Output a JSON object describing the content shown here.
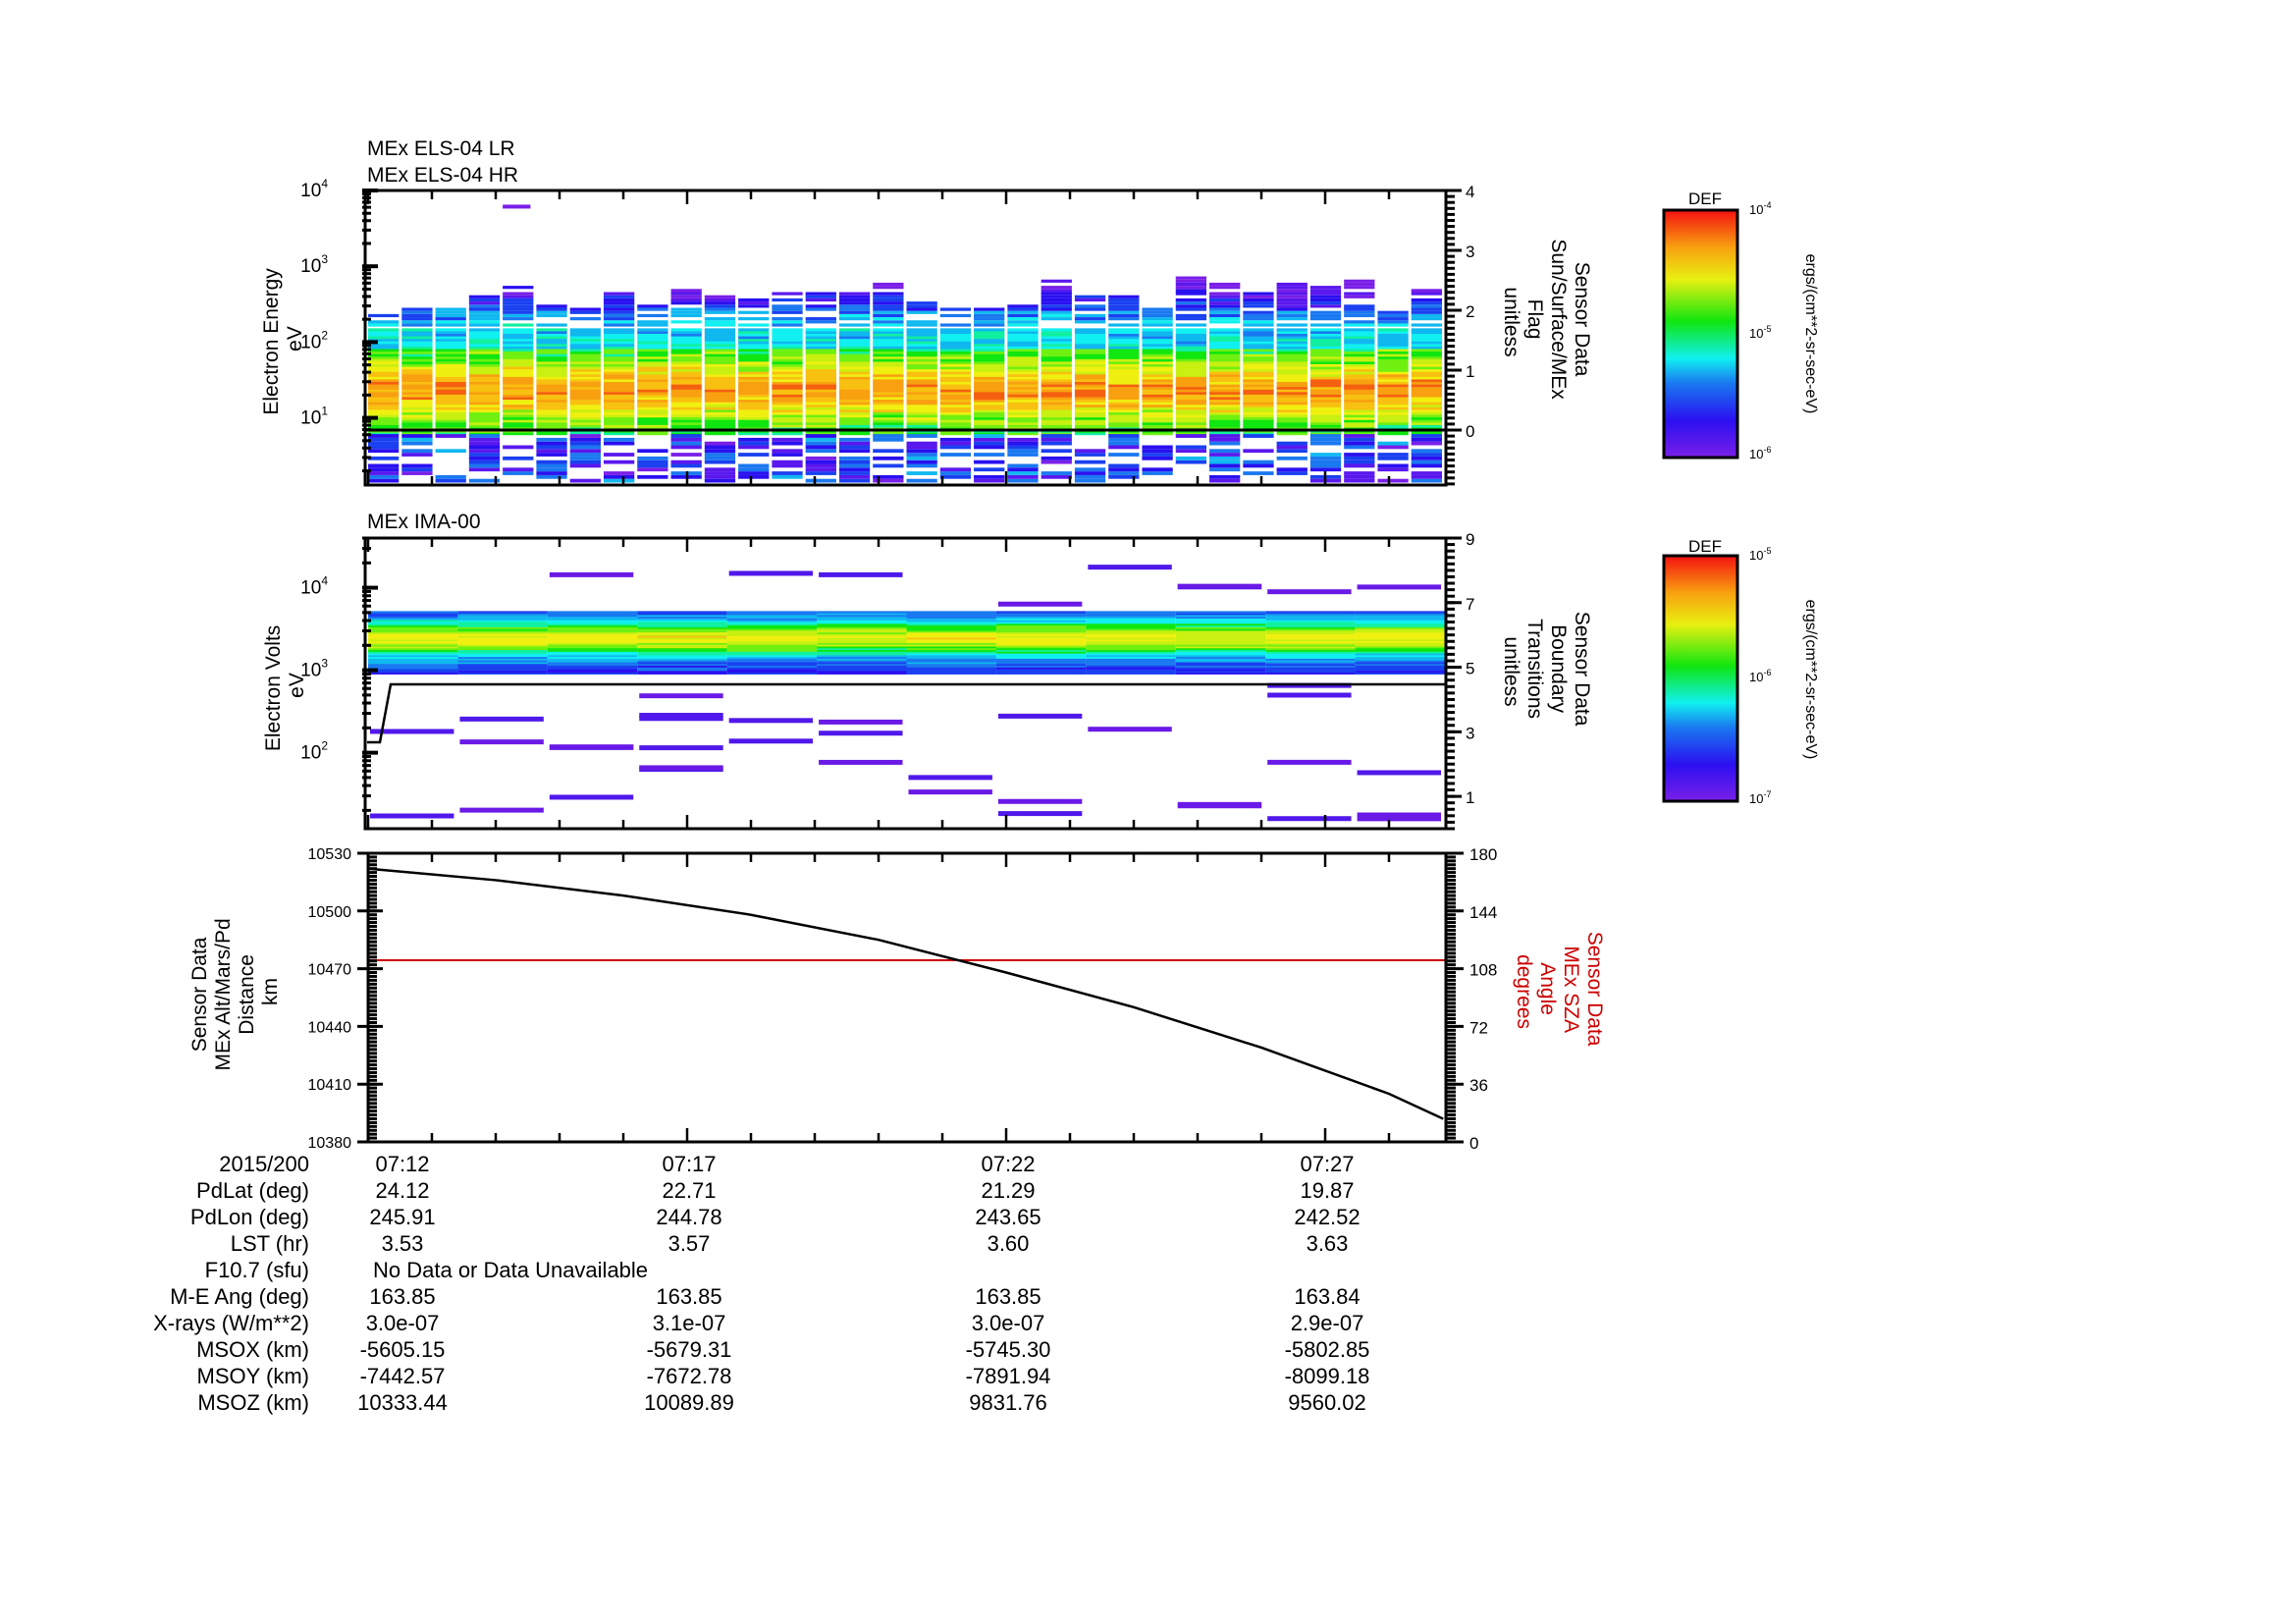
{
  "chart_data": [
    {
      "type": "heatmap",
      "panel": "electron-energy-spectrogram",
      "titles": [
        "MEx ELS-04 LR",
        "MEx ELS-04 HR"
      ],
      "ylabel": [
        "Electron Energy",
        "eV"
      ],
      "yscale": "log",
      "ylim": [
        1,
        10000
      ],
      "yticks": [
        {
          "exp": "4"
        },
        {
          "exp": "3"
        },
        {
          "exp": "2"
        },
        {
          "exp": "1"
        }
      ],
      "y2label": [
        "Sensor Data",
        "Sun/Surface/MEx",
        "Flag",
        "unitless"
      ],
      "y2lim": [
        -1,
        4
      ],
      "y2ticks": [
        "4",
        "3",
        "2",
        "1",
        "0"
      ],
      "overlay_line": {
        "name": "Sun/Surface/MEx Flag",
        "value": 0,
        "color": "#000000"
      },
      "colorbar": {
        "title": "DEF",
        "units": "ergs/(cm**2-sr-sec-eV)",
        "min_label": "10",
        "min_exp": "-6",
        "mid_label": "10",
        "mid_exp": "-5",
        "max_label": "10",
        "max_exp": "-4",
        "range": [
          1e-06,
          0.0001
        ]
      },
      "columns": 32,
      "band_summary": {
        "core_energy_eV": [
          6,
          150
        ],
        "peak_energy_eV": [
          15,
          40
        ],
        "peak_DEF": "~5e-5"
      }
    },
    {
      "type": "heatmap",
      "panel": "ion-spectrogram",
      "titles": [
        "MEx IMA-00"
      ],
      "ylabel": [
        "Electron Volts",
        "eV"
      ],
      "yscale": "log",
      "ylim": [
        10,
        40000
      ],
      "yticks": [
        {
          "exp": "4"
        },
        {
          "exp": "3"
        },
        {
          "exp": "2"
        }
      ],
      "y2label": [
        "Sensor Data",
        "Boundary",
        "Transitions",
        "unitless"
      ],
      "y2lim": [
        0,
        9
      ],
      "y2ticks": [
        "9",
        "7",
        "5",
        "3",
        "1"
      ],
      "overlay_line": {
        "name": "Boundary Transitions",
        "points": [
          [
            0,
            2
          ],
          [
            0.01,
            2
          ],
          [
            0.02,
            4
          ],
          [
            1,
            4
          ]
        ],
        "color": "#000000"
      },
      "colorbar": {
        "title": "DEF",
        "units": "ergs/(cm**2-sr-sec-eV)",
        "min_label": "10",
        "min_exp": "-7",
        "mid_label": "10",
        "mid_exp": "-6",
        "max_label": "10",
        "max_exp": "-5",
        "range": [
          1e-07,
          1e-05
        ]
      },
      "columns": 12,
      "band_summary": {
        "core_energy_eV": [
          900,
          5000
        ],
        "peak_energy_eV": [
          2000,
          3000
        ]
      }
    },
    {
      "type": "line",
      "panel": "altitude-sza",
      "ylabel": [
        "Sensor Data",
        "MEx Alt/Mars/Pd",
        "Distance",
        "km"
      ],
      "ylim": [
        10380,
        10530
      ],
      "yticks": [
        "10530",
        "10500",
        "10470",
        "10440",
        "10410",
        "10380"
      ],
      "y2label": [
        "Sensor Data",
        "MEx SZA",
        "Angle",
        "degrees"
      ],
      "y2color": "#cc0000",
      "y2lim": [
        0,
        180
      ],
      "y2ticks": [
        "180",
        "144",
        "108",
        "72",
        "36",
        "0"
      ],
      "series": [
        {
          "name": "MEx Alt/Mars/Pd Distance (km)",
          "color": "#000000",
          "x_minutes": [
            0,
            2,
            4,
            6,
            8,
            10,
            12,
            14,
            16,
            16.85
          ],
          "values": [
            10522,
            10516,
            10508,
            10498,
            10485,
            10468,
            10450,
            10429,
            10405,
            10392
          ]
        },
        {
          "name": "MEx SZA Angle (degrees)",
          "color": "#cc0000",
          "x_minutes": [
            0,
            16.85
          ],
          "values": [
            113,
            113
          ]
        }
      ],
      "xlabel": "2015/200",
      "xticks": [
        "07:12",
        "07:17",
        "07:22",
        "07:27"
      ],
      "xrange": [
        "07:12:00",
        "07:28:51"
      ]
    }
  ],
  "ephemeris": {
    "rows": [
      {
        "label": "2015/200",
        "values": [
          "07:12",
          "07:17",
          "07:22",
          "07:27"
        ]
      },
      {
        "label": "PdLat (deg)",
        "values": [
          "24.12",
          "22.71",
          "21.29",
          "19.87"
        ]
      },
      {
        "label": "PdLon (deg)",
        "values": [
          "245.91",
          "244.78",
          "243.65",
          "242.52"
        ]
      },
      {
        "label": "LST (hr)",
        "values": [
          "3.53",
          "3.57",
          "3.60",
          "3.63"
        ]
      },
      {
        "label": "F10.7 (sfu)",
        "note": "No Data or Data Unavailable"
      },
      {
        "label": "M-E Ang (deg)",
        "values": [
          "163.85",
          "163.85",
          "163.85",
          "163.84"
        ]
      },
      {
        "label": "X-rays (W/m**2)",
        "values": [
          "3.0e-07",
          "3.1e-07",
          "3.0e-07",
          "2.9e-07"
        ]
      },
      {
        "label": "MSOX (km)",
        "values": [
          "-5605.15",
          "-5679.31",
          "-5745.30",
          "-5802.85"
        ]
      },
      {
        "label": "MSOY (km)",
        "values": [
          "-7442.57",
          "-7672.78",
          "-7891.94",
          "-8099.18"
        ]
      },
      {
        "label": "MSOZ (km)",
        "values": [
          "10333.44",
          "10089.89",
          "9831.76",
          "9560.02"
        ]
      }
    ]
  },
  "colors": {
    "axis": "#000000",
    "sza_line": "#cc0000",
    "altitude_line": "#000000"
  }
}
